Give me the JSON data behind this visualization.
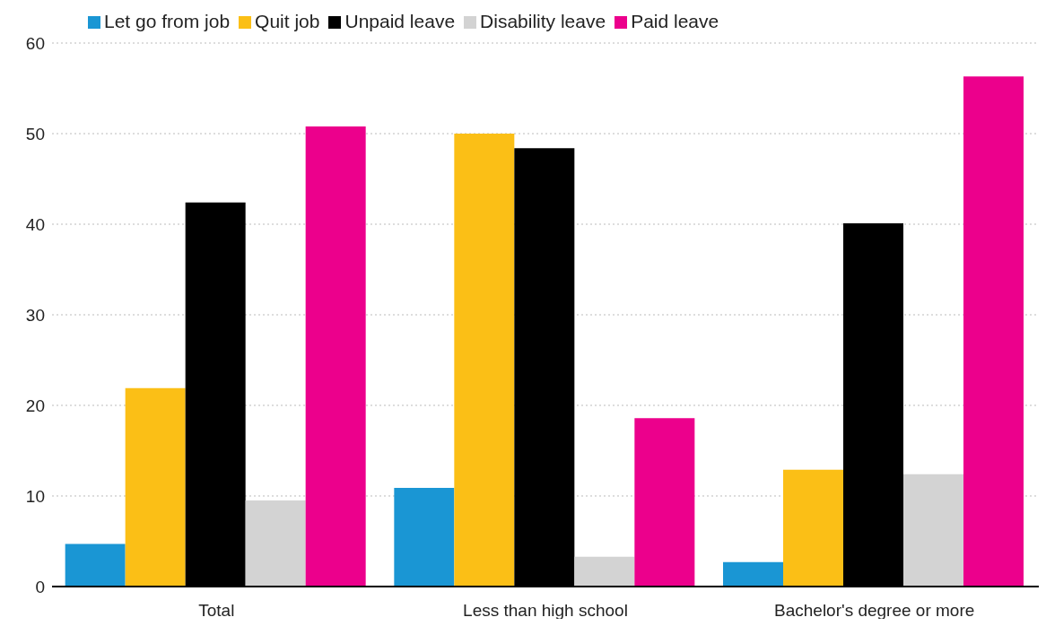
{
  "chart_data": {
    "type": "bar",
    "categories": [
      "Total",
      "Less than high school",
      "Bachelor's degree or more"
    ],
    "series": [
      {
        "name": "Let go from job",
        "color": "#1a96d4",
        "values": [
          4.7,
          10.9,
          2.7
        ]
      },
      {
        "name": "Quit job",
        "color": "#fbbf16",
        "values": [
          21.9,
          50.0,
          12.9
        ]
      },
      {
        "name": "Unpaid leave",
        "color": "#000000",
        "values": [
          42.4,
          48.4,
          40.1
        ]
      },
      {
        "name": "Disability leave",
        "color": "#d3d3d3",
        "values": [
          9.5,
          3.3,
          12.4
        ]
      },
      {
        "name": "Paid leave",
        "color": "#ec008c",
        "values": [
          50.8,
          18.6,
          56.3
        ]
      }
    ],
    "ylim": [
      0,
      60
    ],
    "yticks": [
      0,
      10,
      20,
      30,
      40,
      50,
      60
    ],
    "grid": "y",
    "legend": "top left"
  }
}
